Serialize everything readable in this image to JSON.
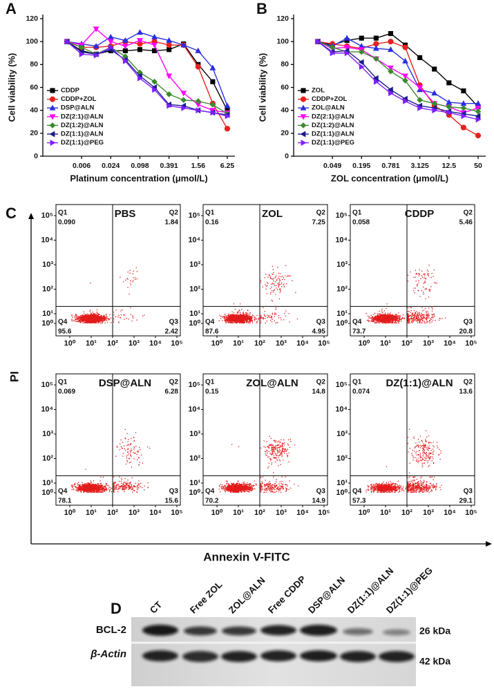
{
  "chart_data": [
    {
      "type": "line",
      "panel_label": "A",
      "y_label": "Cell viability (%)",
      "x_label": "Platinum concentration (μmol/L)",
      "categories": [
        null,
        "0.006",
        null,
        "0.024",
        null,
        "0.098",
        null,
        "0.391",
        null,
        "1.56",
        null,
        "6.25"
      ],
      "ylim": [
        0,
        120
      ],
      "yticks": [
        0,
        20,
        40,
        60,
        80,
        100,
        120
      ],
      "series": [
        {
          "name": "CDDP",
          "color": "#000000",
          "marker": "square",
          "values": [
            100,
            92,
            89,
            92,
            92,
            93,
            92,
            93,
            98,
            80,
            65,
            40
          ]
        },
        {
          "name": "CDDP+ZOL",
          "color": "#e8211d",
          "marker": "circle",
          "values": [
            100,
            95,
            95,
            96,
            100,
            98,
            100,
            97,
            97,
            78,
            46,
            24
          ]
        },
        {
          "name": "DSP@ALN",
          "color": "#2a2ee0",
          "marker": "tri-up",
          "values": [
            100,
            98,
            96,
            104,
            101,
            108,
            104,
            101,
            97,
            92,
            77,
            44
          ]
        },
        {
          "name": "DZ(2:1)@ALN",
          "color": "#ff00ff",
          "marker": "tri-down",
          "values": [
            100,
            97,
            111,
            100,
            96,
            101,
            97,
            70,
            55,
            45,
            40,
            38
          ]
        },
        {
          "name": "DZ(1:2)@ALN",
          "color": "#3c8a2e",
          "marker": "diamond",
          "values": [
            100,
            95,
            89,
            95,
            87,
            73,
            65,
            54,
            49,
            48,
            45,
            37
          ]
        },
        {
          "name": "DZ(1:1)@ALN",
          "color": "#1c1c8c",
          "marker": "tri-left",
          "values": [
            100,
            91,
            89,
            93,
            84,
            70,
            60,
            45,
            44,
            40,
            38,
            36
          ]
        },
        {
          "name": "DZ(1:1)@PEG",
          "color": "#7f1fff",
          "marker": "tri-right",
          "values": [
            100,
            89,
            88,
            95,
            83,
            68,
            58,
            44,
            42,
            40,
            38,
            35
          ]
        }
      ]
    },
    {
      "type": "line",
      "panel_label": "B",
      "y_label": "Cell viability (%)",
      "x_label": "ZOL concentration (μmol/L)",
      "categories": [
        null,
        "0.049",
        null,
        "0.195",
        null,
        "0.781",
        null,
        "3.125",
        null,
        "12.5",
        null,
        "50"
      ],
      "ylim": [
        0,
        120
      ],
      "yticks": [
        0,
        20,
        40,
        60,
        80,
        100,
        120
      ],
      "series": [
        {
          "name": "ZOL",
          "color": "#000000",
          "marker": "square",
          "values": [
            100,
            97,
            101,
            103,
            103,
            107,
            97,
            86,
            76,
            64,
            57,
            43
          ]
        },
        {
          "name": "CDDP+ZOL",
          "color": "#e8211d",
          "marker": "circle",
          "values": [
            100,
            98,
            96,
            94,
            98,
            100,
            95,
            62,
            44,
            36,
            25,
            18
          ]
        },
        {
          "name": "ZOL@ALN",
          "color": "#2a2ee0",
          "marker": "tri-up",
          "values": [
            100,
            96,
            103,
            96,
            94,
            93,
            83,
            58,
            55,
            47,
            46,
            46
          ]
        },
        {
          "name": "DZ(2:1)@ALN",
          "color": "#ff00ff",
          "marker": "tri-down",
          "values": [
            100,
            94,
            95,
            93,
            85,
            77,
            70,
            60,
            46,
            43,
            38,
            42
          ]
        },
        {
          "name": "DZ(1:2)@ALN",
          "color": "#3c8a2e",
          "marker": "diamond",
          "values": [
            100,
            95,
            91,
            91,
            85,
            74,
            66,
            49,
            46,
            43,
            42,
            39
          ]
        },
        {
          "name": "DZ(1:1)@ALN",
          "color": "#1c1c8c",
          "marker": "tri-left",
          "values": [
            100,
            91,
            92,
            82,
            68,
            58,
            50,
            44,
            42,
            39,
            37,
            35
          ]
        },
        {
          "name": "DZ(1:1)@PEG",
          "color": "#7f1fff",
          "marker": "tri-right",
          "values": [
            100,
            90,
            90,
            78,
            65,
            55,
            48,
            42,
            40,
            38,
            35,
            32
          ]
        }
      ]
    }
  ],
  "flow_cytometry": {
    "panel_label": "C",
    "x_label": "Annexin V-FITC",
    "y_label": "PI",
    "axis_ticks": [
      {
        "value": 1,
        "label": "10⁰"
      },
      {
        "value": 10,
        "label": "10¹"
      },
      {
        "value": 100,
        "label": "10²"
      },
      {
        "value": 1000,
        "label": "10³"
      },
      {
        "value": 10000,
        "label": "10⁴"
      },
      {
        "value": 100000,
        "label": "10⁵"
      }
    ],
    "panels": [
      {
        "title": "PBS",
        "quadrants": [
          {
            "name": "Q1",
            "value": "0.090"
          },
          {
            "name": "Q2",
            "value": "1.84"
          },
          {
            "name": "Q3",
            "value": "2.42"
          },
          {
            "name": "Q4",
            "value": "95.6"
          }
        ]
      },
      {
        "title": "ZOL",
        "quadrants": [
          {
            "name": "Q1",
            "value": "0.16"
          },
          {
            "name": "Q2",
            "value": "7.25"
          },
          {
            "name": "Q3",
            "value": "4.95"
          },
          {
            "name": "Q4",
            "value": "87.6"
          }
        ]
      },
      {
        "title": "CDDP",
        "quadrants": [
          {
            "name": "Q1",
            "value": "0.058"
          },
          {
            "name": "Q2",
            "value": "5.46"
          },
          {
            "name": "Q3",
            "value": "20.8"
          },
          {
            "name": "Q4",
            "value": "73.7"
          }
        ]
      },
      {
        "title": "DSP@ALN",
        "quadrants": [
          {
            "name": "Q1",
            "value": "0.069"
          },
          {
            "name": "Q2",
            "value": "6.28"
          },
          {
            "name": "Q3",
            "value": "15.6"
          },
          {
            "name": "Q4",
            "value": "78.1"
          }
        ]
      },
      {
        "title": "ZOL@ALN",
        "quadrants": [
          {
            "name": "Q1",
            "value": "0.15"
          },
          {
            "name": "Q2",
            "value": "14.8"
          },
          {
            "name": "Q3",
            "value": "14.9"
          },
          {
            "name": "Q4",
            "value": "70.2"
          }
        ]
      },
      {
        "title": "DZ(1:1)@ALN",
        "quadrants": [
          {
            "name": "Q1",
            "value": "0.074"
          },
          {
            "name": "Q2",
            "value": "13.6"
          },
          {
            "name": "Q3",
            "value": "29.1"
          },
          {
            "name": "Q4",
            "value": "57.3"
          }
        ]
      }
    ]
  },
  "western_blot": {
    "panel_label": "D",
    "lanes": [
      "CT",
      "Free ZOL",
      "ZOL@ALN",
      "Free CDDP",
      "DSP@ALN",
      "DZ(1:1)@ALN",
      "DZ(1:1)@PEG"
    ],
    "rows": [
      {
        "label": "BCL-2",
        "size": "26 kDa"
      },
      {
        "label": "β-Actin",
        "size": "42 kDa"
      }
    ]
  }
}
